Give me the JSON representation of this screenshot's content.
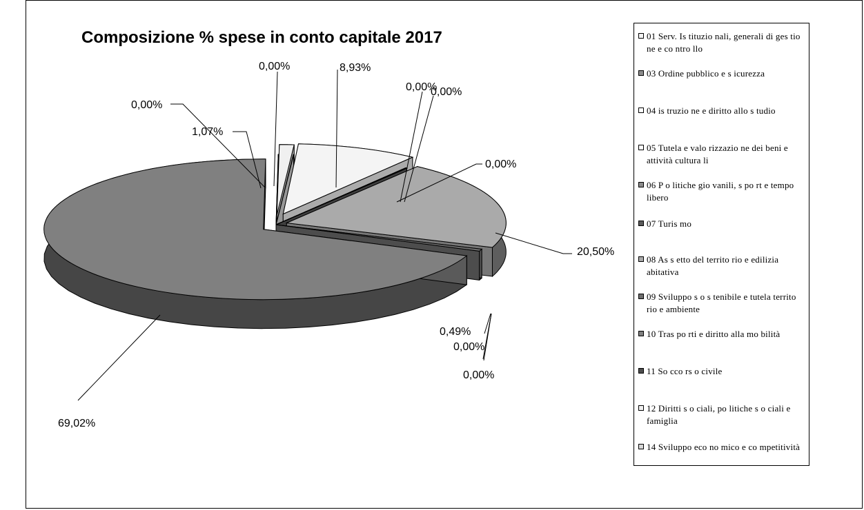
{
  "chart_data": {
    "type": "pie",
    "title": "Composizione % spese in conto capitale 2017",
    "slices": [
      {
        "label": "01 Serv. Istituzionali, generali di gestione e controllo",
        "value": 8.93,
        "label_text": "8,93%",
        "color": "#f4f4f4"
      },
      {
        "label": "03 Ordine pubblico e sicurezza",
        "value": 0.0,
        "label_text": "0,00%",
        "color": "#8c8c8c"
      },
      {
        "label": "04 istruzione e diritto allo studio",
        "value": 0.0,
        "label_text": "0,00%",
        "color": "#ffffff"
      },
      {
        "label": "05 Tutela e valorizzazione dei beni e attività culturali",
        "value": 0.0,
        "label_text": "0,00%",
        "color": "#ffffff"
      },
      {
        "label": "06 Politiche giovanili, sport e tempo libero",
        "value": 0.0,
        "label_text": "0,00%",
        "color": "#8c8c8c"
      },
      {
        "label": "07 Turismo",
        "value": 0.0,
        "label_text": "0,00%",
        "color": "#5a5a5a"
      },
      {
        "label": "08 Assetto del territorio e edilizia abitativa",
        "value": 20.5,
        "label_text": "20,50%",
        "color": "#aaaaaa"
      },
      {
        "label": "09 Sviluppo sostenibile e tutela territorio e ambiente",
        "value": 0.49,
        "label_text": "0,49%",
        "color": "#6e6e6e"
      },
      {
        "label": "10 Trasporti e diritto alla mobilità",
        "value": 69.02,
        "label_text": "69,02%",
        "color": "#808080"
      },
      {
        "label": "11 Soccorso civile",
        "value": 0.0,
        "label_text": "0,00%",
        "color": "#4d4d4d"
      },
      {
        "label": "12 Diritti sociali, politiche sociali e famiglia",
        "value": 1.07,
        "label_text": "1,07%",
        "color": "#f0f0f0"
      },
      {
        "label": "14 Sviluppo economico e competitività",
        "value": 0.0,
        "label_text": "0,00%",
        "color": "#d8d8d8"
      }
    ],
    "legend": {
      "placement": "right",
      "items": [
        "01 Serv. Is tituzio nali, generali di ges tio ne e co ntro llo",
        "03 Ordine pubblico e s icurezza",
        "04 is truzio ne e diritto allo s tudio",
        "05 Tutela e valo rizzazio ne dei beni e attività cultura li",
        "06 P o litiche gio vanili, s po rt e tempo libero",
        "07 Turis mo",
        "08 As s etto del territo rio e edilizia abitativa",
        "09 Sviluppo s o s tenibile e tutela territo rio e ambiente",
        "10 Tras po rti e diritto alla mo bilità",
        "11 So cco rs o civile",
        "12 Diritti s o ciali, po litiche s o ciali e famiglia",
        "14 Sviluppo eco no mico e co mpetitività"
      ]
    }
  }
}
